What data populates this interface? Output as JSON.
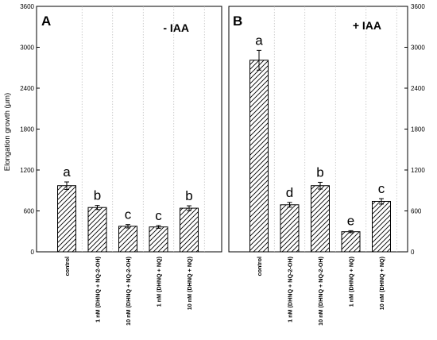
{
  "chart_data": [
    {
      "type": "bar",
      "panel_letter": "A",
      "title": "- IAA",
      "ylabel": "Elongation growth (μm)",
      "ylim": [
        0,
        3600
      ],
      "yticks": [
        0,
        600,
        1200,
        1800,
        2400,
        3000,
        3600
      ],
      "grid": "vertical dotted",
      "categories": [
        "control",
        "1 nM (DHNQ + NQ-2-OH)",
        "10 nM (DHNQ + NQ-2-OH)",
        "1 nM (DHNQ + NQ)",
        "10 nM (DHNQ + NQ)"
      ],
      "values": [
        970,
        650,
        375,
        365,
        640
      ],
      "errors": [
        55,
        30,
        25,
        20,
        35
      ],
      "letters": [
        "a",
        "b",
        "c",
        "c",
        "b"
      ]
    },
    {
      "type": "bar",
      "panel_letter": "B",
      "title": "+ IAA",
      "ylabel": "",
      "ylim": [
        0,
        3600
      ],
      "yticks": [
        0,
        600,
        1200,
        1800,
        2400,
        3000,
        3600
      ],
      "grid": "vertical dotted",
      "categories": [
        "control",
        "1 nM (DHNQ + NQ-2-OH)",
        "10 nM (DHNQ + NQ-2-OH)",
        "1 nM (DHNQ + NQ)",
        "10 nM (DHNQ + NQ)"
      ],
      "values": [
        2810,
        690,
        970,
        295,
        740
      ],
      "errors": [
        145,
        35,
        50,
        15,
        40
      ],
      "letters": [
        "a",
        "d",
        "b",
        "e",
        "c"
      ]
    }
  ]
}
